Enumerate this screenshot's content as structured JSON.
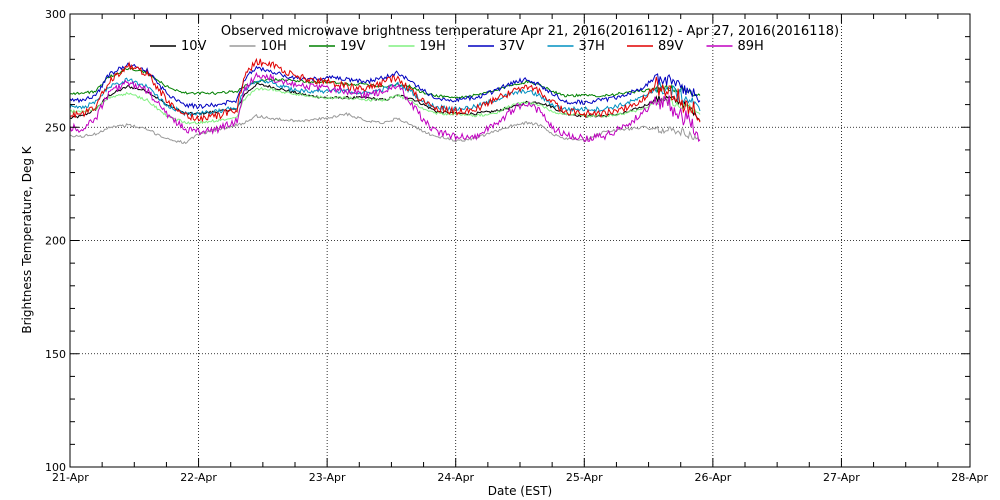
{
  "chart_data": {
    "type": "line",
    "title": "Observed microwave brightness temperature Apr 21, 2016(2016112) - Apr 27, 2016(2016118)",
    "xlabel": "Date (EST)",
    "ylabel": "Brightness Temperature, Deg K",
    "xlim": [
      "2016-04-21",
      "2016-04-28"
    ],
    "ylim": [
      100,
      300
    ],
    "x_ticks": [
      "21-Apr",
      "22-Apr",
      "23-Apr",
      "24-Apr",
      "25-Apr",
      "26-Apr",
      "27-Apr",
      "28-Apr"
    ],
    "y_ticks": [
      "100",
      "150",
      "200",
      "250",
      "300"
    ],
    "grid": true,
    "legend_position": "top",
    "x_days": [
      0,
      0.1,
      0.2,
      0.3,
      0.45,
      0.6,
      0.75,
      0.9,
      1.0,
      1.15,
      1.3,
      1.35,
      1.45,
      1.55,
      1.7,
      1.85,
      2.0,
      2.15,
      2.3,
      2.45,
      2.55,
      2.65,
      2.75,
      2.85,
      3.0,
      3.15,
      3.3,
      3.45,
      3.55,
      3.65,
      3.75,
      3.85,
      4.0,
      4.15,
      4.3,
      4.45,
      4.55,
      4.65,
      4.75,
      4.85,
      4.9
    ],
    "series": [
      {
        "name": "10V",
        "color": "#000000",
        "values": [
          254,
          255,
          258,
          264,
          268,
          266,
          260,
          256,
          256,
          257,
          258,
          264,
          269,
          268,
          266,
          264,
          263,
          263,
          263,
          262,
          264,
          263,
          260,
          257,
          256,
          256,
          257,
          259,
          261,
          261,
          259,
          256,
          255,
          255,
          256,
          259,
          262,
          263,
          261,
          257,
          253
        ]
      },
      {
        "name": "10H",
        "color": "#9a9a9a",
        "values": [
          246,
          246,
          247,
          250,
          251,
          249,
          245,
          243,
          247,
          249,
          251,
          252,
          255,
          254,
          253,
          253,
          254,
          256,
          253,
          252,
          254,
          251,
          248,
          246,
          244,
          245,
          248,
          251,
          252,
          251,
          247,
          245,
          244,
          248,
          249,
          250,
          249,
          249,
          248,
          246,
          244
        ]
      },
      {
        "name": "19V",
        "color": "#008000",
        "values": [
          265,
          265,
          266,
          272,
          276,
          274,
          268,
          265,
          265,
          265,
          266,
          268,
          270,
          271,
          271,
          270,
          270,
          269,
          269,
          268,
          269,
          268,
          265,
          264,
          263,
          264,
          266,
          269,
          270,
          269,
          266,
          264,
          264,
          264,
          265,
          266,
          267,
          267,
          267,
          265,
          264
        ]
      },
      {
        "name": "19H",
        "color": "#80f080",
        "values": [
          257,
          257,
          258,
          263,
          265,
          262,
          255,
          252,
          252,
          253,
          255,
          262,
          267,
          267,
          265,
          264,
          263,
          263,
          262,
          262,
          264,
          262,
          258,
          256,
          256,
          255,
          256,
          260,
          261,
          260,
          257,
          256,
          255,
          255,
          256,
          258,
          261,
          262,
          260,
          258,
          256
        ]
      },
      {
        "name": "37V",
        "color": "#0000c0",
        "values": [
          262,
          262,
          264,
          273,
          278,
          275,
          265,
          260,
          259,
          260,
          262,
          271,
          276,
          275,
          272,
          271,
          272,
          271,
          270,
          272,
          274,
          270,
          266,
          263,
          262,
          263,
          266,
          270,
          271,
          269,
          265,
          261,
          261,
          262,
          264,
          267,
          272,
          271,
          268,
          265,
          261
        ]
      },
      {
        "name": "37H",
        "color": "#0090c0",
        "values": [
          259,
          259,
          261,
          268,
          271,
          268,
          260,
          256,
          256,
          257,
          259,
          266,
          271,
          270,
          267,
          266,
          266,
          266,
          265,
          267,
          269,
          266,
          261,
          259,
          258,
          259,
          262,
          265,
          266,
          264,
          260,
          258,
          258,
          258,
          260,
          263,
          267,
          267,
          264,
          261,
          258
        ]
      },
      {
        "name": "89V",
        "color": "#e00000",
        "values": [
          255,
          256,
          259,
          270,
          277,
          274,
          262,
          255,
          254,
          255,
          258,
          272,
          279,
          278,
          274,
          271,
          270,
          268,
          267,
          270,
          272,
          266,
          261,
          258,
          257,
          258,
          262,
          266,
          268,
          266,
          261,
          257,
          256,
          256,
          258,
          262,
          268,
          266,
          262,
          257,
          253
        ]
      },
      {
        "name": "89H",
        "color": "#c000c0",
        "values": [
          250,
          249,
          254,
          265,
          270,
          266,
          256,
          249,
          248,
          249,
          253,
          266,
          273,
          272,
          270,
          268,
          267,
          266,
          264,
          266,
          268,
          261,
          253,
          248,
          246,
          246,
          251,
          258,
          261,
          257,
          250,
          247,
          245,
          246,
          250,
          256,
          262,
          261,
          256,
          249,
          244
        ]
      }
    ]
  }
}
